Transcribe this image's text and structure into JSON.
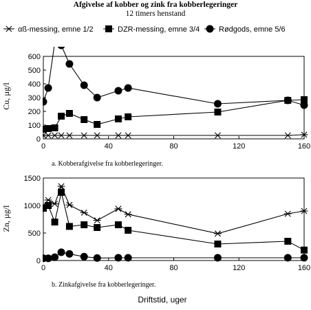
{
  "figure": {
    "title": "Afgivelse af kobber og zink fra kobberlegeringer",
    "subtitle": "12 timers henstand",
    "xlabel": "Driftstid, uger"
  },
  "legend": {
    "items": [
      {
        "label": "αß-messing, emne 1/2",
        "marker": "star"
      },
      {
        "label": "DZR-messing, emne 3/4",
        "marker": "square"
      },
      {
        "label": "Rødgods, emne 5/6",
        "marker": "circle"
      }
    ]
  },
  "chart_data": [
    {
      "type": "line",
      "caption": "a. Kobberafgivelse fra kobberlegeringer.",
      "ylabel": "Cu, µg/l",
      "xlim": [
        0,
        160
      ],
      "ylim": [
        0,
        600
      ],
      "x_ticks": [
        0,
        40,
        80,
        120,
        160
      ],
      "y_ticks": [
        0,
        100,
        200,
        300,
        400,
        500,
        600
      ],
      "legend": "top",
      "grid": false,
      "series": [
        {
          "name": "αß-messing, emne 1/2",
          "marker": "star",
          "x": [
            0,
            3,
            7,
            11,
            16,
            25,
            33,
            46,
            52,
            107,
            150,
            160
          ],
          "y": [
            25,
            25,
            25,
            25,
            25,
            25,
            25,
            25,
            25,
            25,
            25,
            30
          ]
        },
        {
          "name": "DZR-messing, emne 3/4",
          "marker": "square",
          "x": [
            0,
            3,
            7,
            11,
            16,
            25,
            33,
            46,
            52,
            107,
            150,
            160
          ],
          "y": [
            70,
            75,
            80,
            165,
            185,
            140,
            105,
            145,
            160,
            195,
            280,
            285
          ]
        },
        {
          "name": "Rødgods, emne 5/6",
          "marker": "circle",
          "x": [
            0,
            3,
            7,
            11,
            16,
            25,
            33,
            46,
            52,
            107,
            150,
            160
          ],
          "y": [
            270,
            370,
            700,
            680,
            545,
            390,
            300,
            350,
            370,
            255,
            280,
            245
          ]
        }
      ]
    },
    {
      "type": "line",
      "caption": "b. Zinkafgivelse fra kobberlegeringer.",
      "ylabel": "Zn, µg/l",
      "xlim": [
        0,
        160
      ],
      "ylim": [
        0,
        1500
      ],
      "x_ticks": [
        0,
        40,
        80,
        120,
        160
      ],
      "y_ticks": [
        0,
        500,
        1000,
        1500
      ],
      "legend": "none",
      "grid": false,
      "series": [
        {
          "name": "αß-messing, emne 1/2",
          "marker": "star",
          "x": [
            0,
            3,
            7,
            11,
            16,
            25,
            33,
            46,
            52,
            107,
            150,
            160
          ],
          "y": [
            1000,
            1100,
            1030,
            1350,
            1010,
            870,
            730,
            940,
            840,
            490,
            850,
            900
          ]
        },
        {
          "name": "DZR-messing, emne 3/4",
          "marker": "square",
          "x": [
            0,
            3,
            7,
            11,
            16,
            25,
            33,
            46,
            52,
            107,
            150,
            160
          ],
          "y": [
            950,
            1000,
            700,
            1240,
            620,
            650,
            600,
            650,
            550,
            300,
            350,
            190
          ]
        },
        {
          "name": "Rødgods, emne 5/6",
          "marker": "circle",
          "x": [
            0,
            3,
            7,
            11,
            16,
            25,
            33,
            46,
            52,
            107,
            150,
            160
          ],
          "y": [
            40,
            40,
            60,
            150,
            120,
            70,
            45,
            50,
            50,
            50,
            50,
            50
          ]
        }
      ]
    }
  ]
}
